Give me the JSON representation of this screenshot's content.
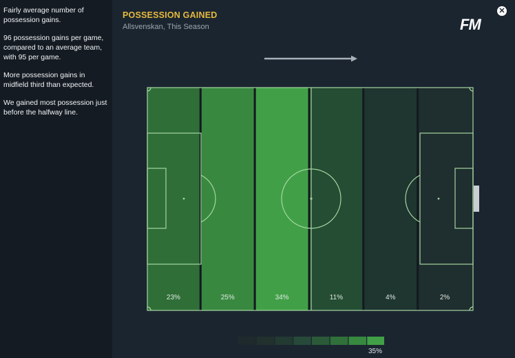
{
  "sidebar": {
    "paragraphs": [
      "Fairly average number of possession gains.",
      "96 possession gains per game, compared to an average team, with 95 per game.",
      "More possession gains in midfield third than expected.",
      "We gained most possession just before the halfway line."
    ]
  },
  "header": {
    "title": "POSSESSION GAINED",
    "subtitle": "Allsvenskan, This Season",
    "logo": "FM",
    "close_icon": "close-icon"
  },
  "direction_icon": "arrow-right-icon",
  "chart_data": {
    "type": "heatmap",
    "zones": [
      {
        "label": "23%",
        "value": 23,
        "color": "#2f6e37"
      },
      {
        "label": "25%",
        "value": 25,
        "color": "#38893f"
      },
      {
        "label": "34%",
        "value": 34,
        "color": "#41a047"
      },
      {
        "label": "11%",
        "value": 11,
        "color": "#244d33"
      },
      {
        "label": "4%",
        "value": 4,
        "color": "#1f3530"
      },
      {
        "label": "2%",
        "value": 2,
        "color": "#1f2e2e"
      }
    ],
    "scale": {
      "colors": [
        "#1f2a2c",
        "#22302e",
        "#223a32",
        "#27493a",
        "#2b5a38",
        "#30703a",
        "#37893f",
        "#41a047"
      ],
      "max_label": "35%"
    }
  }
}
